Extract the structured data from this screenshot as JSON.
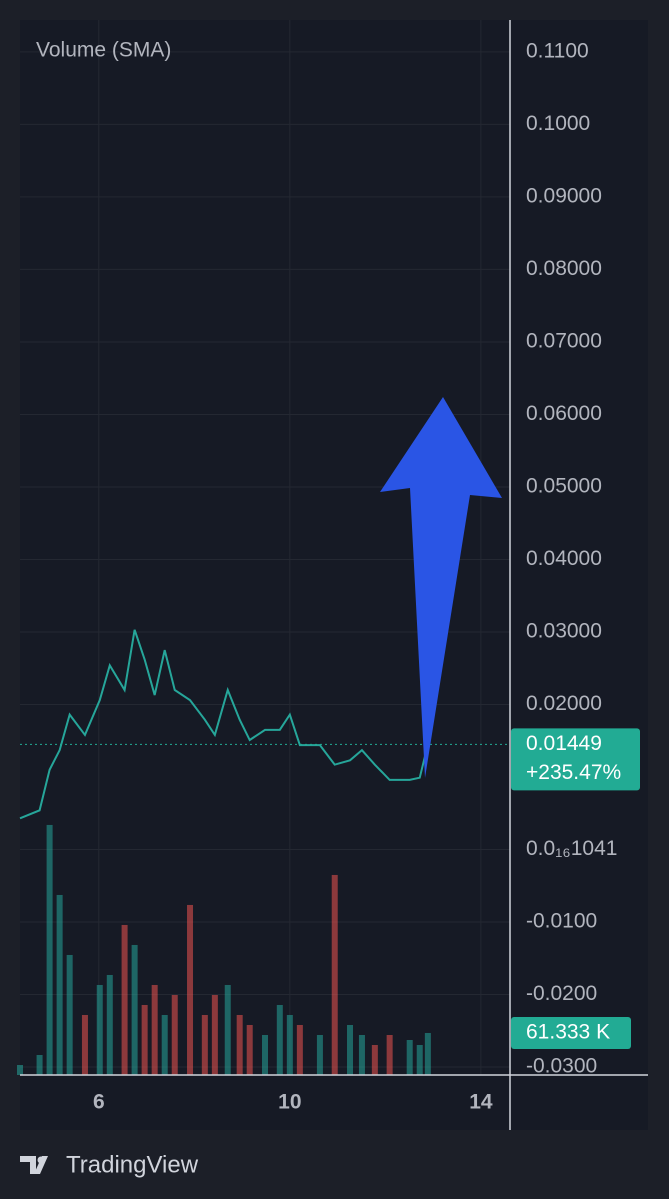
{
  "chart_data": {
    "type": "line",
    "legend_text": "Volume (SMA)",
    "brand": "TradingView",
    "x": [
      4.35,
      4.76,
      4.97,
      5.18,
      5.39,
      5.71,
      6.02,
      6.23,
      6.54,
      6.75,
      6.96,
      7.17,
      7.38,
      7.59,
      7.91,
      8.22,
      8.43,
      8.7,
      8.95,
      9.16,
      9.48,
      9.79,
      10.0,
      10.21,
      10.63,
      10.94,
      11.26,
      11.51,
      11.78,
      12.09,
      12.51,
      12.72,
      12.89
    ],
    "series": [
      {
        "color": "#26a69a",
        "values": [
          0.0043,
          0.0054,
          0.011,
          0.0137,
          0.0186,
          0.0158,
          0.0206,
          0.0254,
          0.022,
          0.0303,
          0.0262,
          0.0213,
          0.0275,
          0.022,
          0.0206,
          0.0179,
          0.0158,
          0.022,
          0.0179,
          0.0151,
          0.0165,
          0.0165,
          0.0186,
          0.0144,
          0.0144,
          0.0117,
          0.0123,
          0.0137,
          0.0117,
          0.0096,
          0.0096,
          0.0099,
          0.01449
        ]
      },
      {
        "axis": "y2",
        "values": [
          14600,
          29200,
          365000,
          262800,
          175200,
          87600,
          131400,
          146000,
          219000,
          189800,
          102200,
          131400,
          87600,
          116800,
          248200,
          87600,
          116800,
          131400,
          87600,
          73000,
          58400,
          102200,
          87600,
          73000,
          58400,
          292000,
          73000,
          58400,
          43800,
          58400,
          51100,
          43800,
          61333
        ]
      }
    ],
    "up_color": "#26a69a",
    "down_color": "#ef5350",
    "change_label": "+235.47%",
    "volume_label": "61.333 K",
    "xlim": [
      4.35,
      14.61
    ],
    "xticks": [
      6,
      10,
      14
    ],
    "ylim": [
      -0.0311,
      0.1144
    ],
    "yticks": [
      {
        "value": 0.11,
        "label": "0.1100"
      },
      {
        "value": 0.1,
        "label": "0.1000"
      },
      {
        "value": 0.09,
        "label": "0.09000"
      },
      {
        "value": 0.08,
        "label": "0.08000"
      },
      {
        "value": 0.07,
        "label": "0.07000"
      },
      {
        "value": 0.06,
        "label": "0.06000"
      },
      {
        "value": 0.05,
        "label": "0.05000"
      },
      {
        "value": 0.04,
        "label": "0.04000"
      },
      {
        "value": 0.03,
        "label": "0.03000"
      },
      {
        "value": 0.02,
        "label": "0.02000"
      },
      {
        "value": 1.041e-17,
        "label": "0.0₁₆1041"
      },
      {
        "value": -0.01,
        "label": "-0.0100"
      },
      {
        "value": -0.02,
        "label": "-0.0200"
      },
      {
        "value": -0.03,
        "label": "-0.0300"
      }
    ],
    "y2lim": [
      0,
      1540000
    ],
    "grid": true
  }
}
